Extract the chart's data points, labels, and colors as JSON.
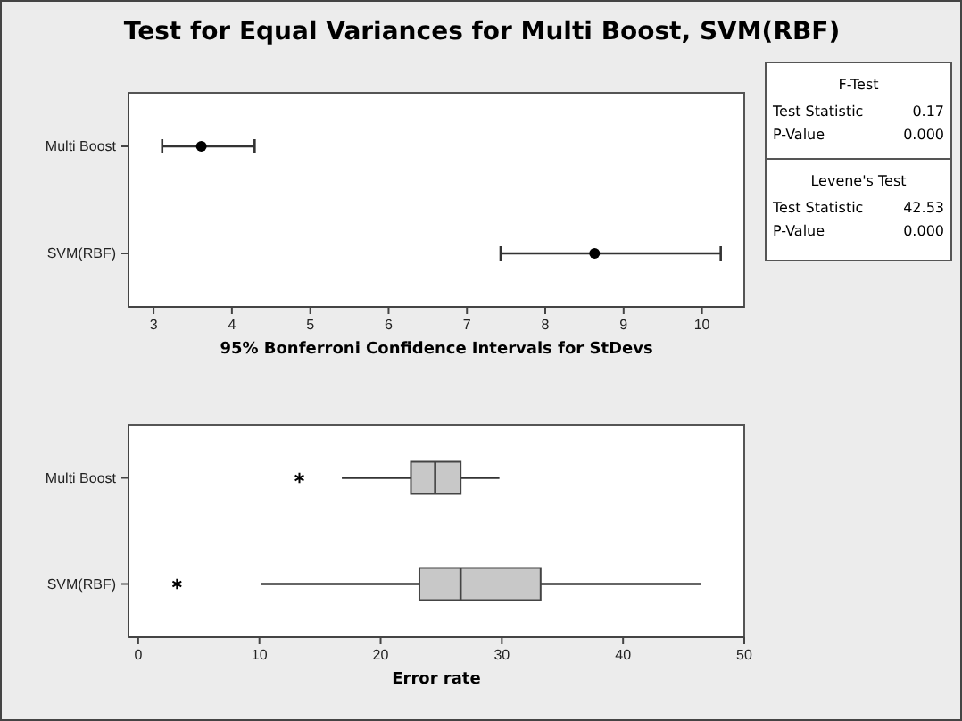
{
  "chart_data": [
    {
      "type": "scatter",
      "title": "Test for Equal Variances for Multi Boost, SVM(RBF)",
      "orientation": "horizontal",
      "categories": [
        "Multi Boost",
        "SVM(RBF)"
      ],
      "values": [
        3.61,
        8.63
      ],
      "errors": [
        [
          3.11,
          4.29
        ],
        [
          7.43,
          10.24
        ]
      ],
      "color": "#000000",
      "marker": "circle",
      "xlim": [
        2.68,
        10.54
      ],
      "xticks": [
        3,
        4,
        5,
        6,
        7,
        8,
        9,
        10
      ],
      "xlabel": "95% Bonferroni Confidence Intervals for StDevs",
      "grid": false
    },
    {
      "type": "box",
      "orientation": "horizontal",
      "categories": [
        "Multi Boost",
        "SVM(RBF)"
      ],
      "boxes": [
        {
          "low": 16.8,
          "q1": 22.5,
          "median": 24.5,
          "q3": 26.6,
          "high": 29.8,
          "outliers": [
            13.3
          ]
        },
        {
          "low": 10.1,
          "q1": 23.2,
          "median": 26.6,
          "q3": 33.2,
          "high": 46.4,
          "outliers": [
            3.2
          ]
        }
      ],
      "color": "#c8c8c8",
      "xlim": [
        -0.8,
        50.0
      ],
      "xticks": [
        0,
        10,
        20,
        30,
        40,
        50
      ],
      "xlabel": "Error rate",
      "grid": false
    },
    {
      "type": "other",
      "annotations": [
        "F-Test",
        "Test Statistic",
        "0.17",
        "P-Value",
        "0.000",
        "Levene's Test",
        "Test Statistic",
        "42.53",
        "P-Value",
        "0.000"
      ]
    }
  ]
}
